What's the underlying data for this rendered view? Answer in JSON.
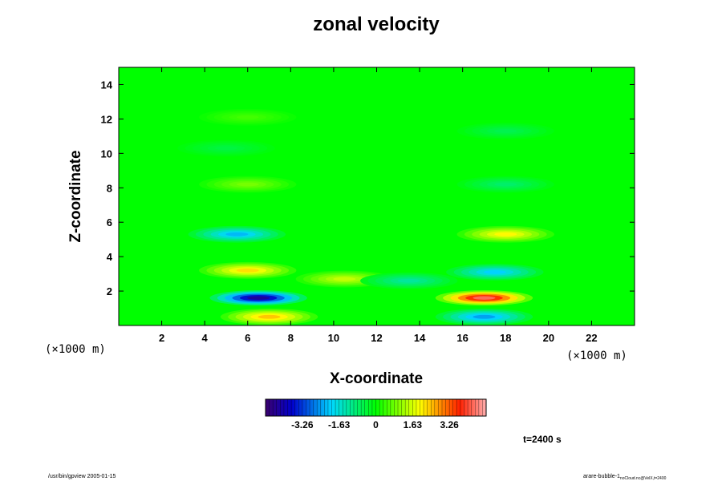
{
  "chart_data": {
    "type": "heatmap",
    "title": "zonal velocity",
    "xlabel": "X-coordinate",
    "ylabel": "Z-coordinate",
    "x_scale_note": "(×1000 m)",
    "y_scale_note": "(×1000 m)",
    "xlim": [
      0,
      24
    ],
    "ylim": [
      0,
      15
    ],
    "x_ticks": [
      2,
      4,
      6,
      8,
      10,
      12,
      14,
      16,
      18,
      20,
      22
    ],
    "y_ticks": [
      2,
      4,
      6,
      8,
      10,
      12,
      14
    ],
    "colorbar": {
      "range": [
        -4.89,
        4.89
      ],
      "tick_values": [
        -3.26,
        -1.63,
        0,
        1.63,
        3.26
      ],
      "tick_labels": [
        "-3.26",
        "-1.63",
        "0",
        "1.63",
        "3.26"
      ],
      "colormap": "rainbow (dark blue to red)"
    },
    "features": [
      {
        "x": 17,
        "z": 1.6,
        "value": 4.3
      },
      {
        "x": 6.5,
        "z": 1.6,
        "value": -4.3
      },
      {
        "x": 7,
        "z": 0.5,
        "value": 2.4
      },
      {
        "x": 17,
        "z": 0.5,
        "value": -2.4
      },
      {
        "x": 6,
        "z": 3.2,
        "value": 2.2
      },
      {
        "x": 17.5,
        "z": 3.1,
        "value": -2.0
      },
      {
        "x": 5.5,
        "z": 5.3,
        "value": -2.2
      },
      {
        "x": 18,
        "z": 5.3,
        "value": 2.0
      },
      {
        "x": 6,
        "z": 8.2,
        "value": 0.9
      },
      {
        "x": 18,
        "z": 8.2,
        "value": -0.8
      },
      {
        "x": 5,
        "z": 10.3,
        "value": -0.5
      },
      {
        "x": 18,
        "z": 11.3,
        "value": -0.6
      },
      {
        "x": 6,
        "z": 12.1,
        "value": 0.5
      },
      {
        "x": 10.5,
        "z": 2.7,
        "value": 1.5
      },
      {
        "x": 13.5,
        "z": 2.6,
        "value": -1.2
      }
    ]
  },
  "annotations": {
    "time": "t=2400 s",
    "footer_left": "/usr/bin/gpview 2005-01-15",
    "footer_right_main": "arare-bubble-1",
    "footer_right_sub": "noCloud.nc@VelX,t=2400"
  }
}
